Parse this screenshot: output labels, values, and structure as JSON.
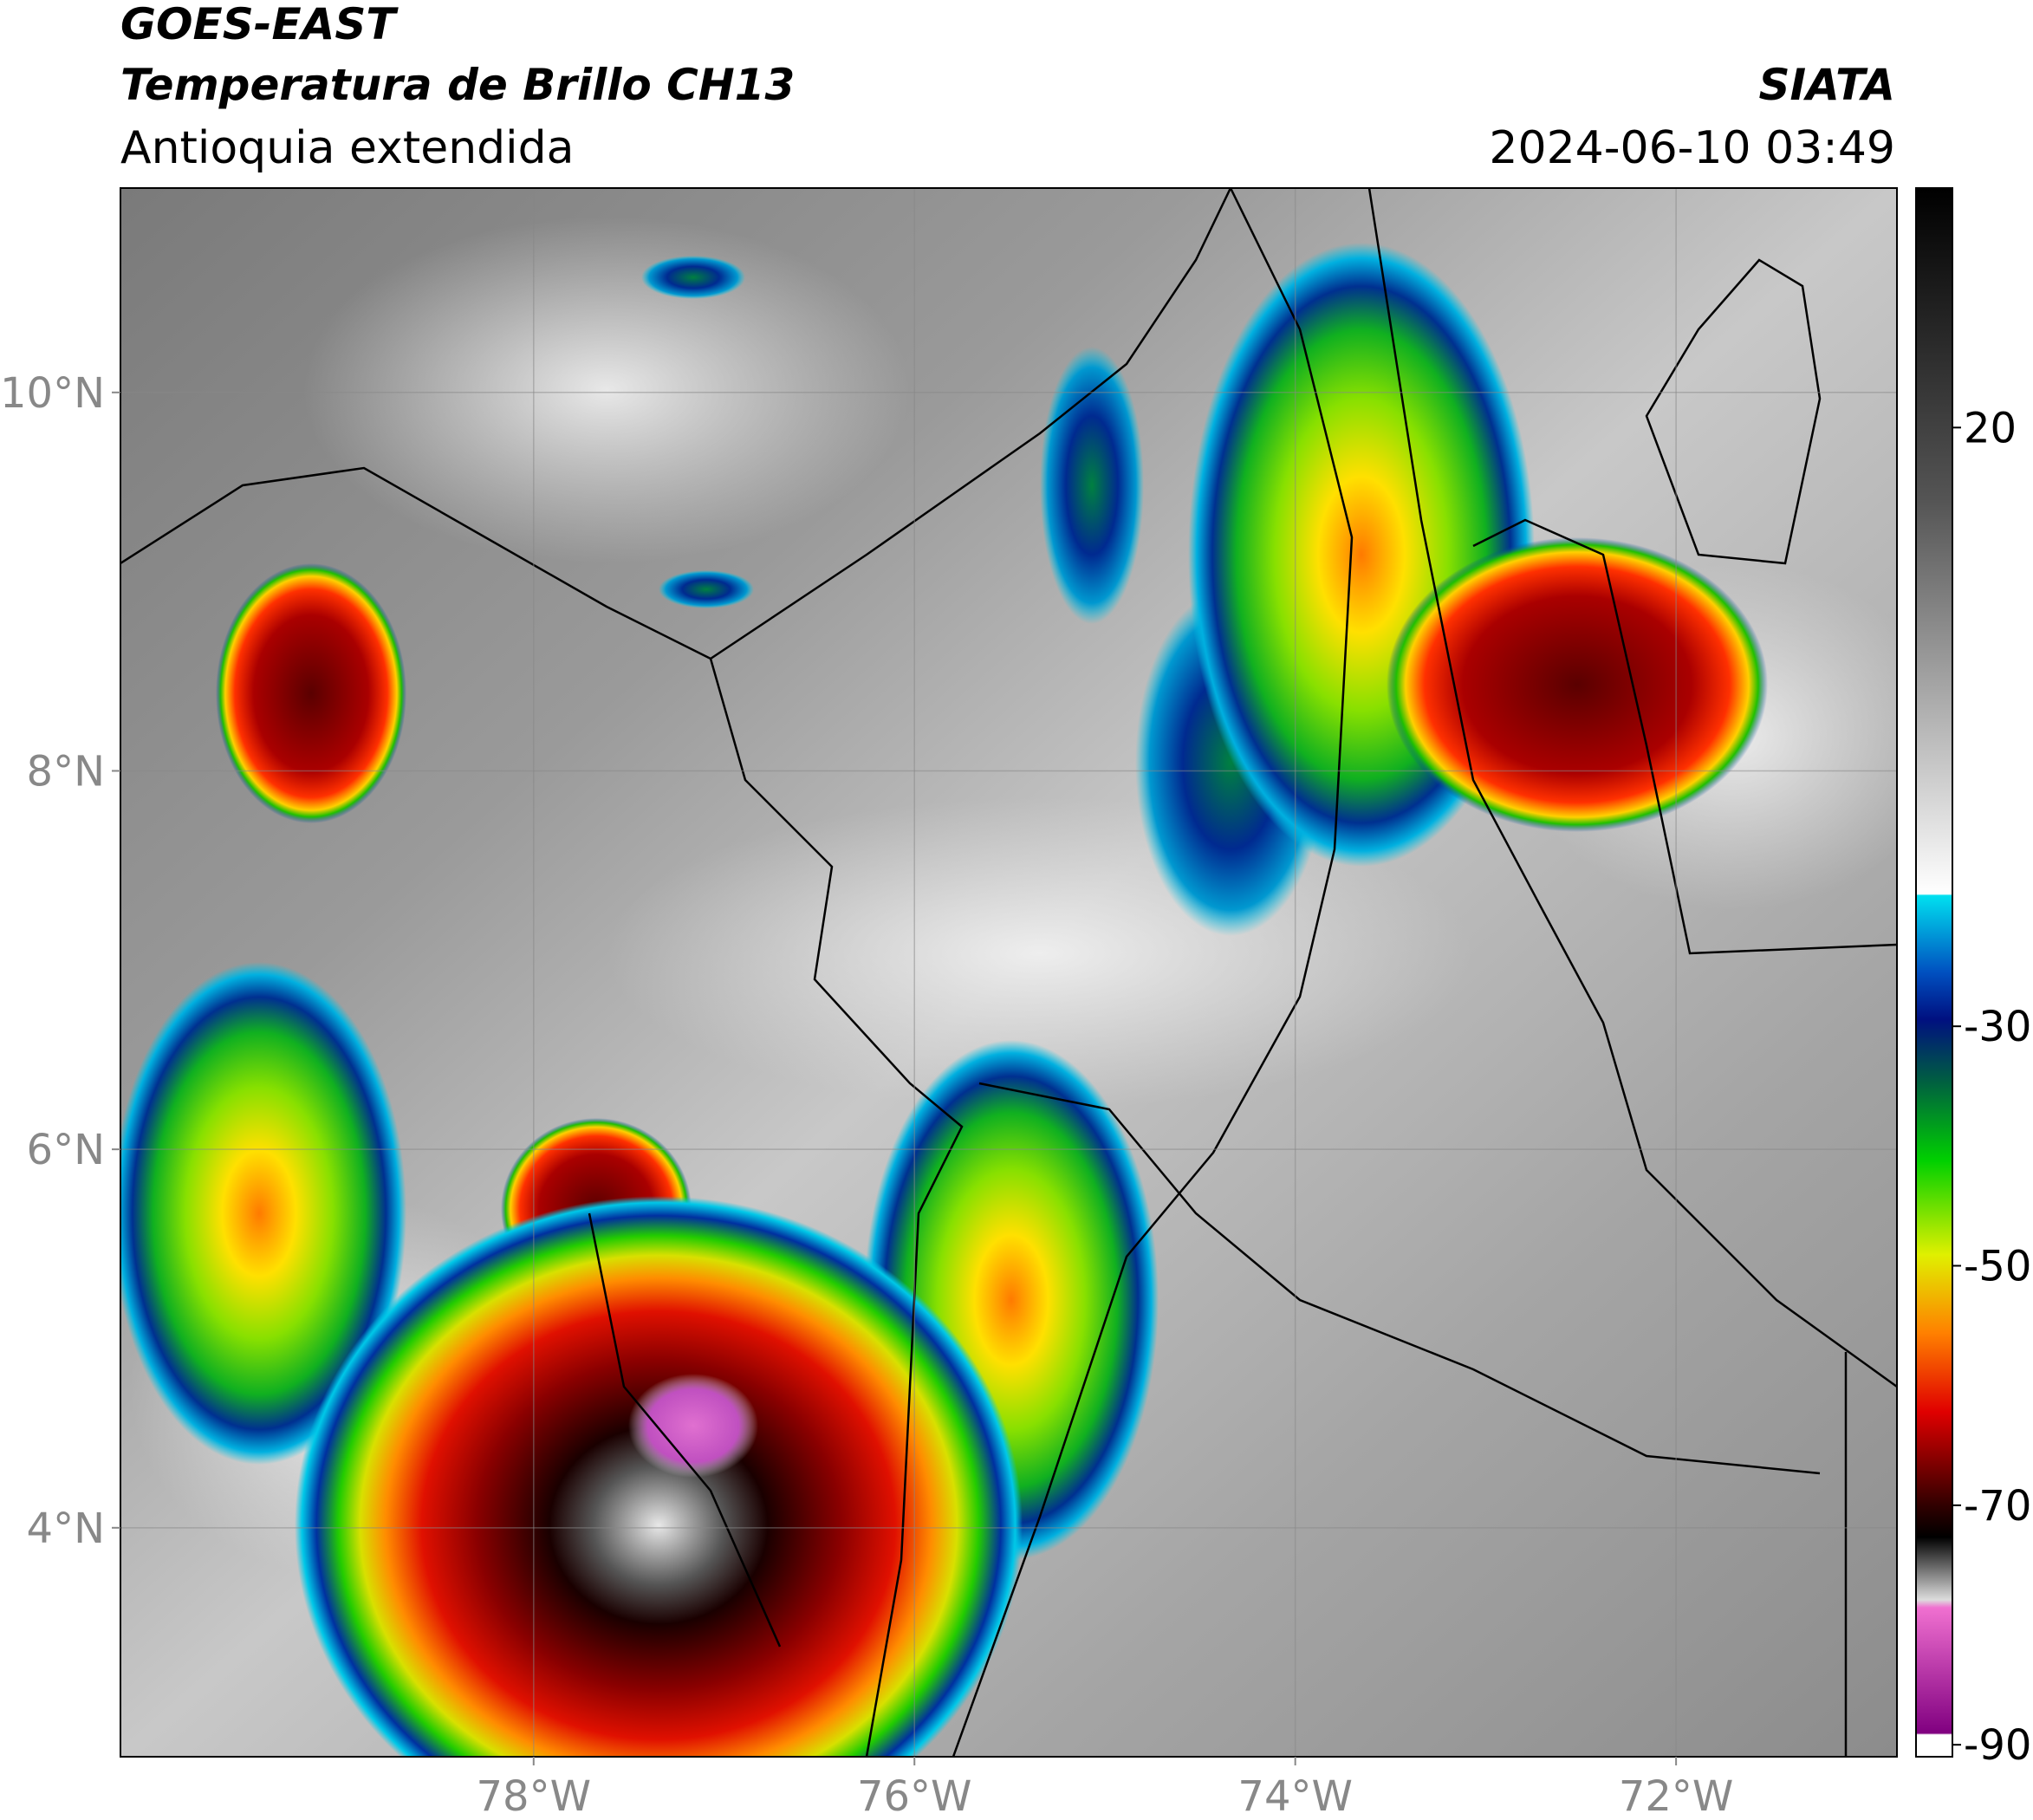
{
  "header": {
    "satellite": "GOES-EAST",
    "product": "Temperatura de Brillo CH13",
    "region": "Antioquia extendida",
    "source": "SIATA",
    "datetime": "2024-06-10 03:49"
  },
  "map": {
    "xlim": [
      -80.17,
      -70.84
    ],
    "ylim": [
      2.79,
      11.08
    ],
    "xticks": [
      {
        "value": -78,
        "label": "78°W"
      },
      {
        "value": -76,
        "label": "76°W"
      },
      {
        "value": -74,
        "label": "74°W"
      },
      {
        "value": -72,
        "label": "72°W"
      }
    ],
    "yticks": [
      {
        "value": 4,
        "label": "4°N"
      },
      {
        "value": 6,
        "label": "6°N"
      },
      {
        "value": 8,
        "label": "8°N"
      },
      {
        "value": 10,
        "label": "10°N"
      }
    ],
    "grid": true
  },
  "colorbar": {
    "lim": [
      40,
      -91
    ],
    "ticks": [
      20,
      -30,
      -50,
      -70,
      -90
    ]
  }
}
